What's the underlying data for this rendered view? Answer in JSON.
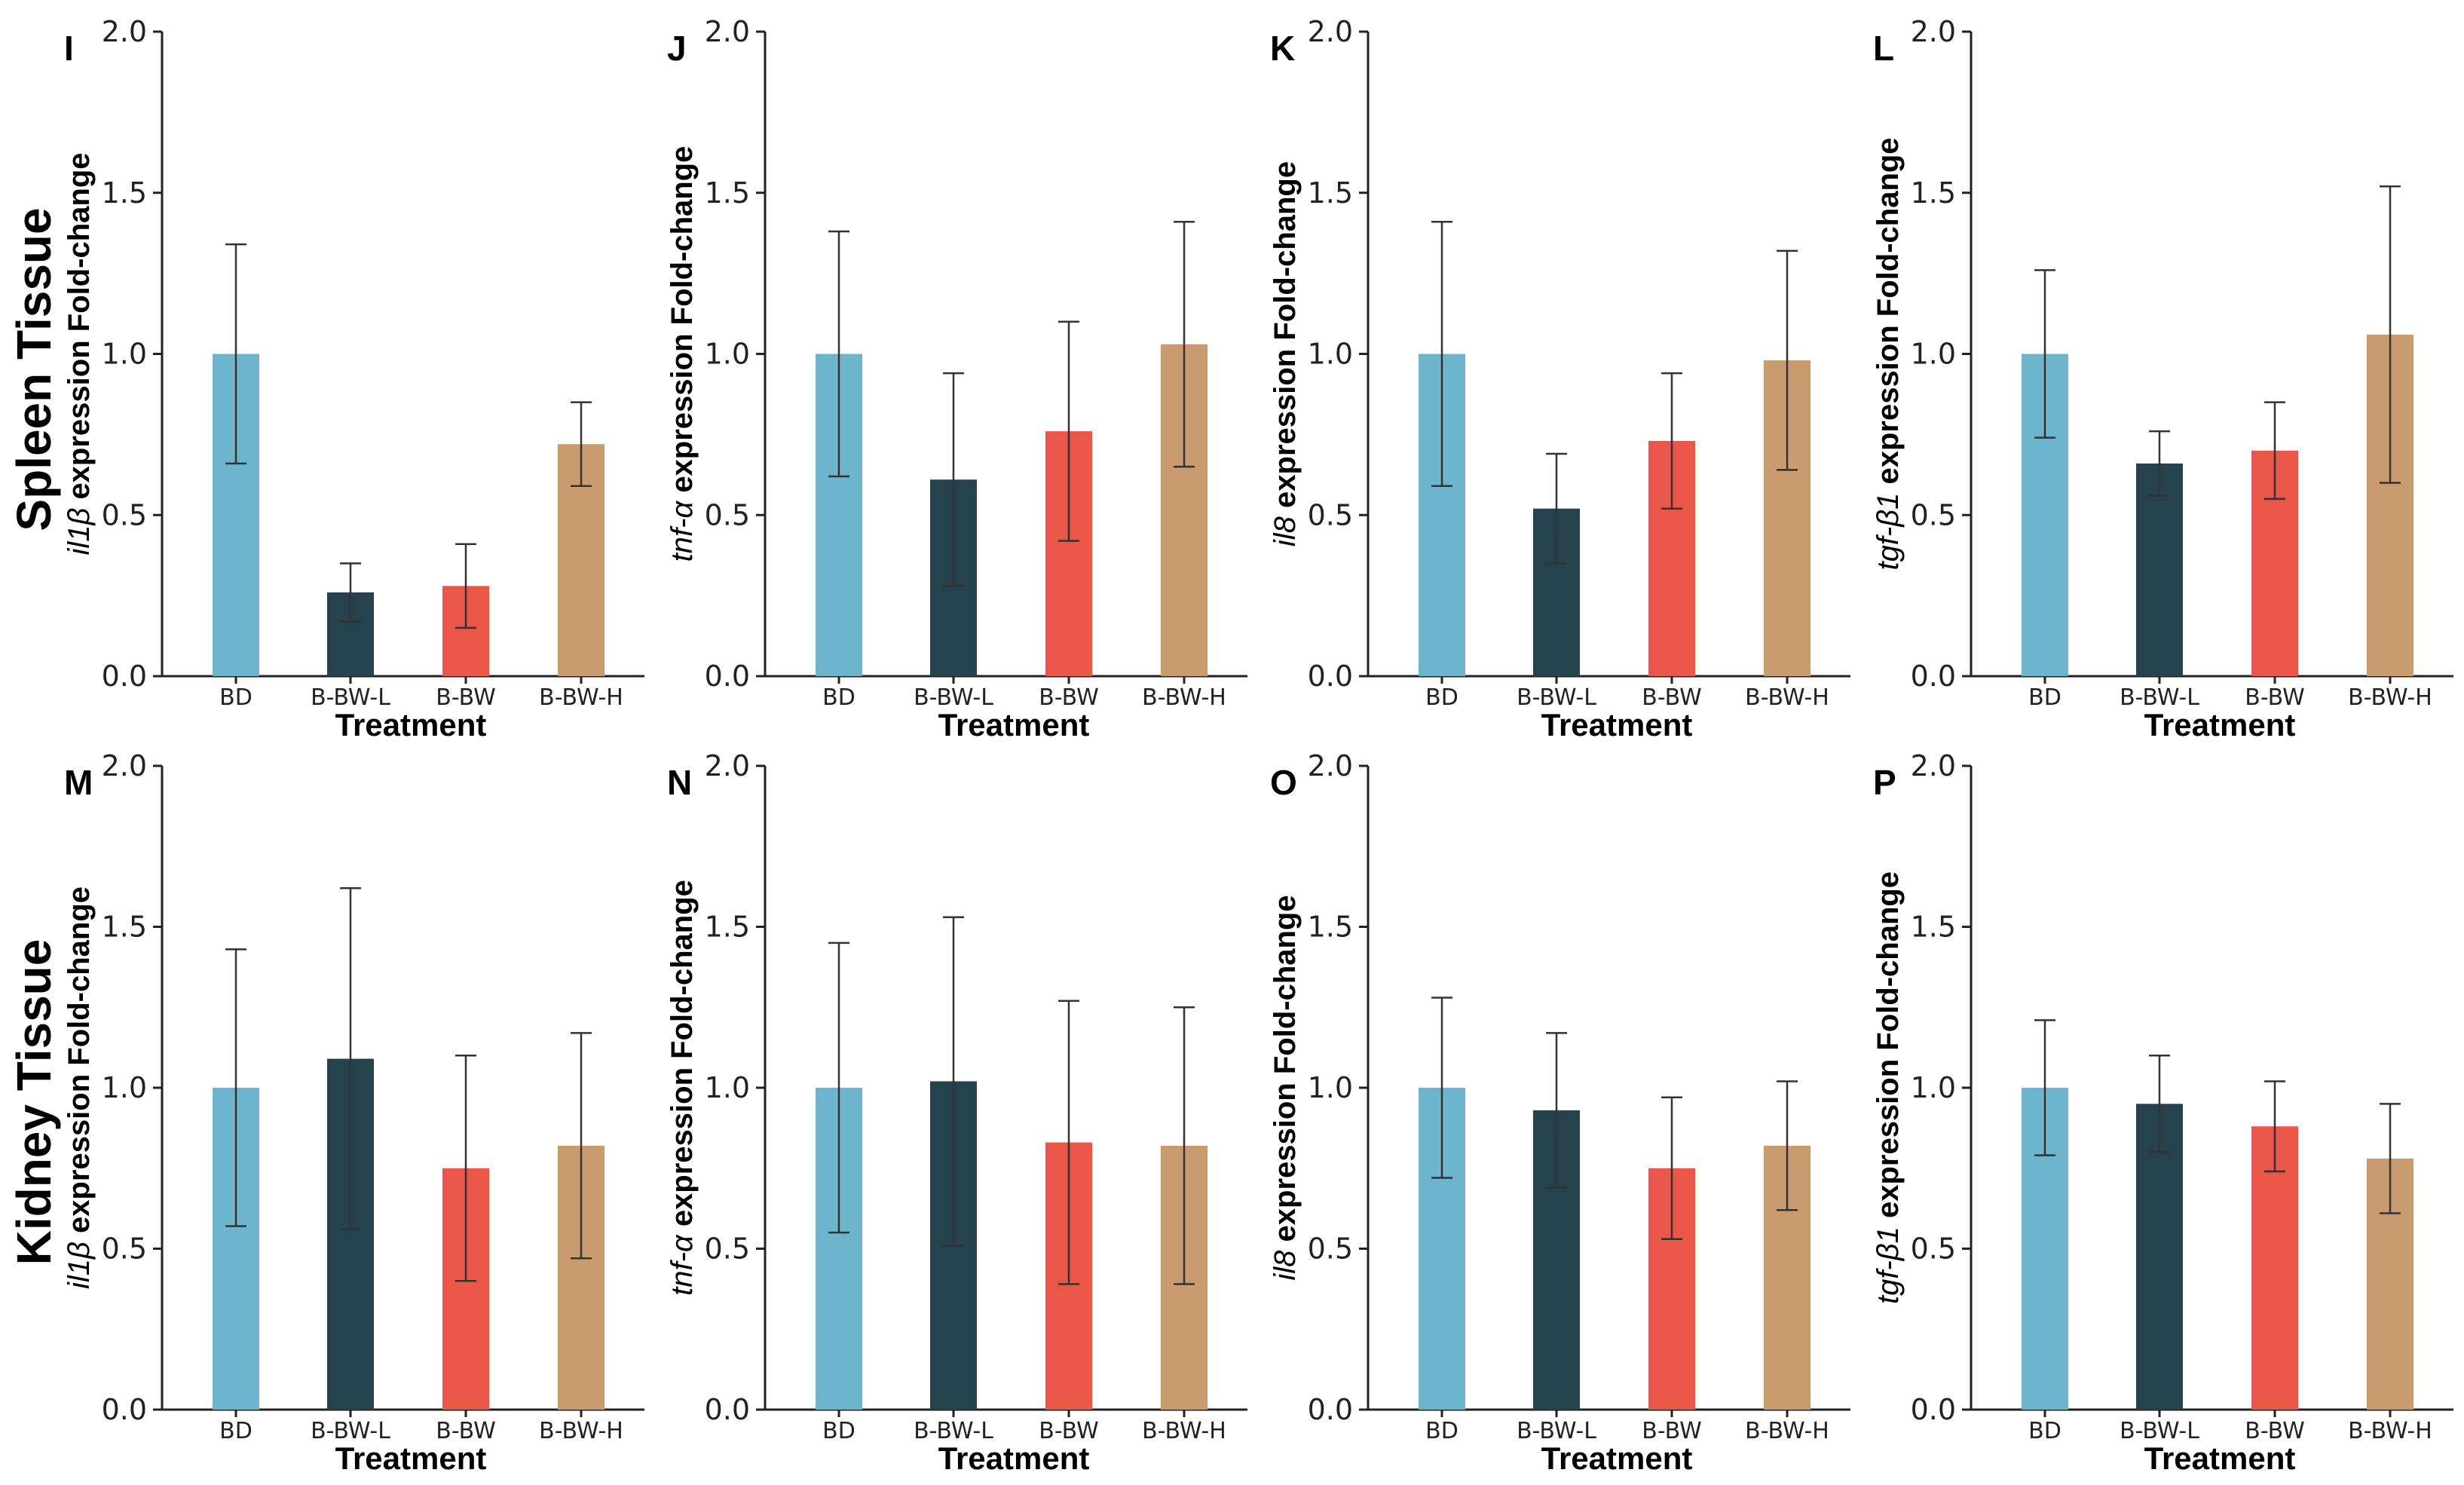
{
  "row_labels": [
    "Spleen Tissue",
    "Kidney Tissue"
  ],
  "colors": {
    "BD": "#6cb5cd",
    "B-BW-L": "#26424c",
    "B-BW": "#ea5648",
    "B-BW-H": "#c99b6e"
  },
  "chart_data": [
    {
      "panel": "I",
      "type": "bar",
      "gene": "il1β",
      "ylabel_suffix": " expression Fold-change",
      "xlabel": "Treatment",
      "categories": [
        "BD",
        "B-BW-L",
        "B-BW",
        "B-BW-H"
      ],
      "values": [
        1.0,
        0.26,
        0.28,
        0.72
      ],
      "errors": [
        0.34,
        0.09,
        0.13,
        0.13
      ],
      "ylim": [
        0,
        2.0
      ],
      "yticks": [
        "0.0",
        "0.5",
        "1.0",
        "1.5",
        "2.0"
      ]
    },
    {
      "panel": "J",
      "type": "bar",
      "gene": "tnf-α",
      "ylabel_suffix": " expression Fold-change",
      "xlabel": "Treatment",
      "categories": [
        "BD",
        "B-BW-L",
        "B-BW",
        "B-BW-H"
      ],
      "values": [
        1.0,
        0.61,
        0.76,
        1.03
      ],
      "errors": [
        0.38,
        0.33,
        0.34,
        0.38
      ],
      "ylim": [
        0,
        2.0
      ],
      "yticks": [
        "0.0",
        "0.5",
        "1.0",
        "1.5",
        "2.0"
      ]
    },
    {
      "panel": "K",
      "type": "bar",
      "gene": "il8",
      "ylabel_suffix": " expression Fold-change",
      "xlabel": "Treatment",
      "categories": [
        "BD",
        "B-BW-L",
        "B-BW",
        "B-BW-H"
      ],
      "values": [
        1.0,
        0.52,
        0.73,
        0.98
      ],
      "errors": [
        0.41,
        0.17,
        0.21,
        0.34
      ],
      "ylim": [
        0,
        2.0
      ],
      "yticks": [
        "0.0",
        "0.5",
        "1.0",
        "1.5",
        "2.0"
      ]
    },
    {
      "panel": "L",
      "type": "bar",
      "gene": "tgf-β1",
      "ylabel_suffix": " expression Fold-change",
      "xlabel": "Treatment",
      "categories": [
        "BD",
        "B-BW-L",
        "B-BW",
        "B-BW-H"
      ],
      "values": [
        1.0,
        0.66,
        0.7,
        1.06
      ],
      "errors": [
        0.26,
        0.1,
        0.15,
        0.46
      ],
      "ylim": [
        0,
        2.0
      ],
      "yticks": [
        "0.0",
        "0.5",
        "1.0",
        "1.5",
        "2.0"
      ]
    },
    {
      "panel": "M",
      "type": "bar",
      "gene": "il1β",
      "ylabel_suffix": " expression Fold-change",
      "xlabel": "Treatment",
      "categories": [
        "BD",
        "B-BW-L",
        "B-BW",
        "B-BW-H"
      ],
      "values": [
        1.0,
        1.09,
        0.75,
        0.82
      ],
      "errors": [
        0.43,
        0.53,
        0.35,
        0.35
      ],
      "ylim": [
        0,
        2.0
      ],
      "yticks": [
        "0.0",
        "0.5",
        "1.0",
        "1.5",
        "2.0"
      ]
    },
    {
      "panel": "N",
      "type": "bar",
      "gene": "tnf-α",
      "ylabel_suffix": " expression Fold-change",
      "xlabel": "Treatment",
      "categories": [
        "BD",
        "B-BW-L",
        "B-BW",
        "B-BW-H"
      ],
      "values": [
        1.0,
        1.02,
        0.83,
        0.82
      ],
      "errors": [
        0.45,
        0.51,
        0.44,
        0.43
      ],
      "ylim": [
        0,
        2.0
      ],
      "yticks": [
        "0.0",
        "0.5",
        "1.0",
        "1.5",
        "2.0"
      ]
    },
    {
      "panel": "O",
      "type": "bar",
      "gene": "il8",
      "ylabel_suffix": " expression Fold-change",
      "xlabel": "Treatment",
      "categories": [
        "BD",
        "B-BW-L",
        "B-BW",
        "B-BW-H"
      ],
      "values": [
        1.0,
        0.93,
        0.75,
        0.82
      ],
      "errors": [
        0.28,
        0.24,
        0.22,
        0.2
      ],
      "ylim": [
        0,
        2.0
      ],
      "yticks": [
        "0.0",
        "0.5",
        "1.0",
        "1.5",
        "2.0"
      ]
    },
    {
      "panel": "P",
      "type": "bar",
      "gene": "tgf-β1",
      "ylabel_suffix": " expression Fold-change",
      "xlabel": "Treatment",
      "categories": [
        "BD",
        "B-BW-L",
        "B-BW",
        "B-BW-H"
      ],
      "values": [
        1.0,
        0.95,
        0.88,
        0.78
      ],
      "errors": [
        0.21,
        0.15,
        0.14,
        0.17
      ],
      "ylim": [
        0,
        2.0
      ],
      "yticks": [
        "0.0",
        "0.5",
        "1.0",
        "1.5",
        "2.0"
      ]
    }
  ]
}
